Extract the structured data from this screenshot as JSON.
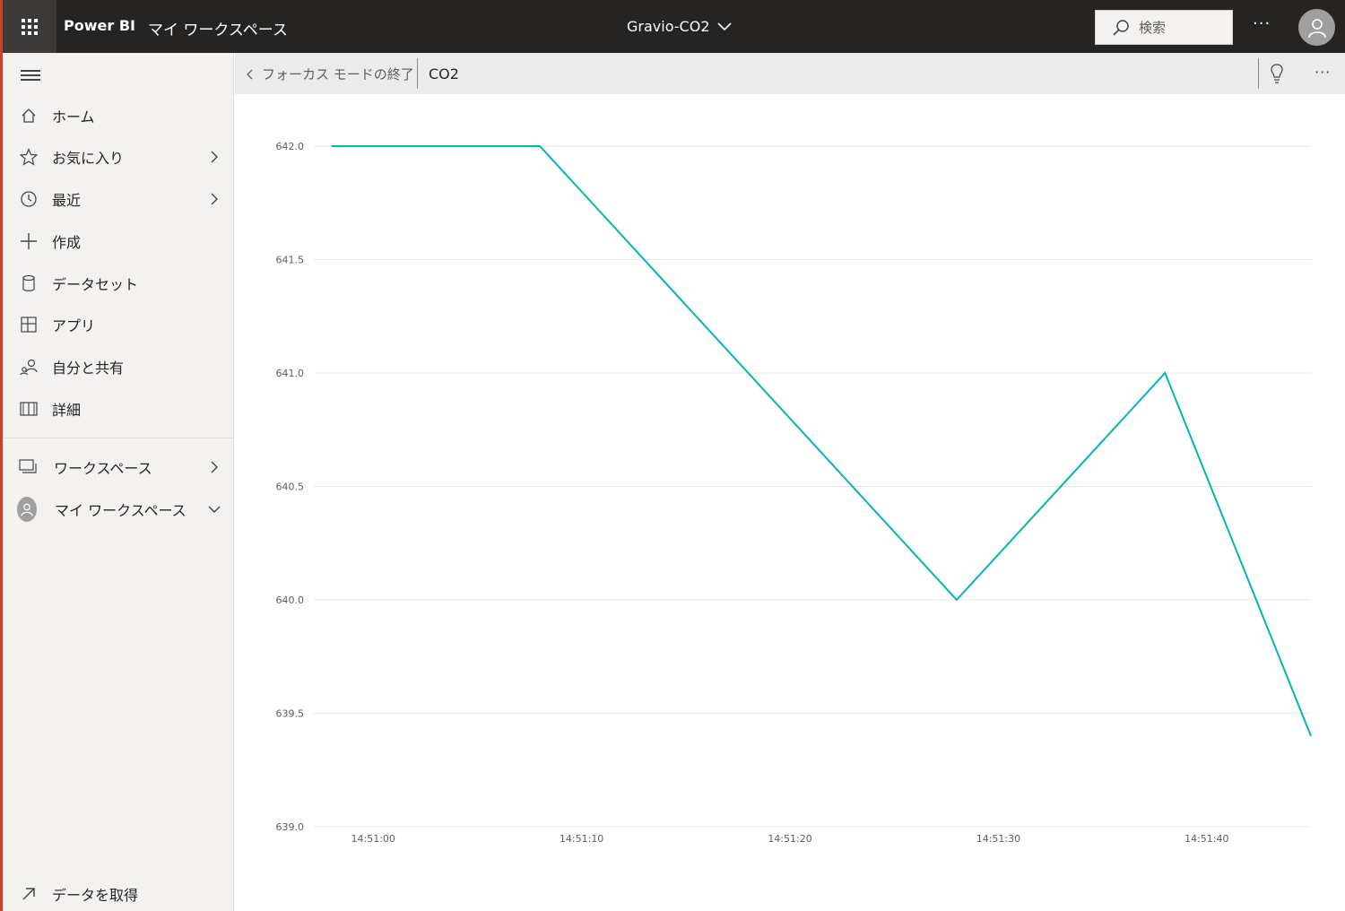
{
  "topbar": {
    "app_name": "Power BI",
    "workspace": "マイ ワークスペース",
    "title": "Gravio-CO2",
    "search_placeholder": "検索",
    "more": "···"
  },
  "sidebar": {
    "items": [
      {
        "label": "ホーム",
        "icon": "home-icon"
      },
      {
        "label": "お気に入り",
        "icon": "star-icon"
      },
      {
        "label": "最近",
        "icon": "clock-icon"
      },
      {
        "label": "作成",
        "icon": "plus-icon"
      },
      {
        "label": "データセット",
        "icon": "database-icon"
      },
      {
        "label": "アプリ",
        "icon": "apps-icon"
      },
      {
        "label": "自分と共有",
        "icon": "shared-icon"
      },
      {
        "label": "詳細",
        "icon": "book-icon"
      }
    ],
    "workspaces": "ワークスペース",
    "my_workspace": "マイ ワークスペース",
    "get_data": "データを取得"
  },
  "focus": {
    "exit_label": "フォーカス モードの終了",
    "tile_title": "CO2",
    "more": "···"
  },
  "colors": {
    "line": "#01b8aa",
    "topbar": "#252423",
    "accent": "#c4432b"
  },
  "chart_data": {
    "type": "line",
    "title": "",
    "xlabel": "",
    "ylabel": "",
    "x": [
      "14:50:58",
      "14:51:08",
      "14:51:28",
      "14:51:38",
      "14:51:45"
    ],
    "series": [
      {
        "values": [
          642.0,
          642.0,
          640.0,
          641.0,
          639.4
        ]
      }
    ],
    "ylim": [
      639.0,
      642.0
    ],
    "yticks": [
      "642.0",
      "641.5",
      "641.0",
      "640.5",
      "640.0",
      "639.5",
      "639.0"
    ],
    "xticks": [
      "14:51:00",
      "14:51:10",
      "14:51:20",
      "14:51:30",
      "14:51:40"
    ],
    "grid": true
  }
}
